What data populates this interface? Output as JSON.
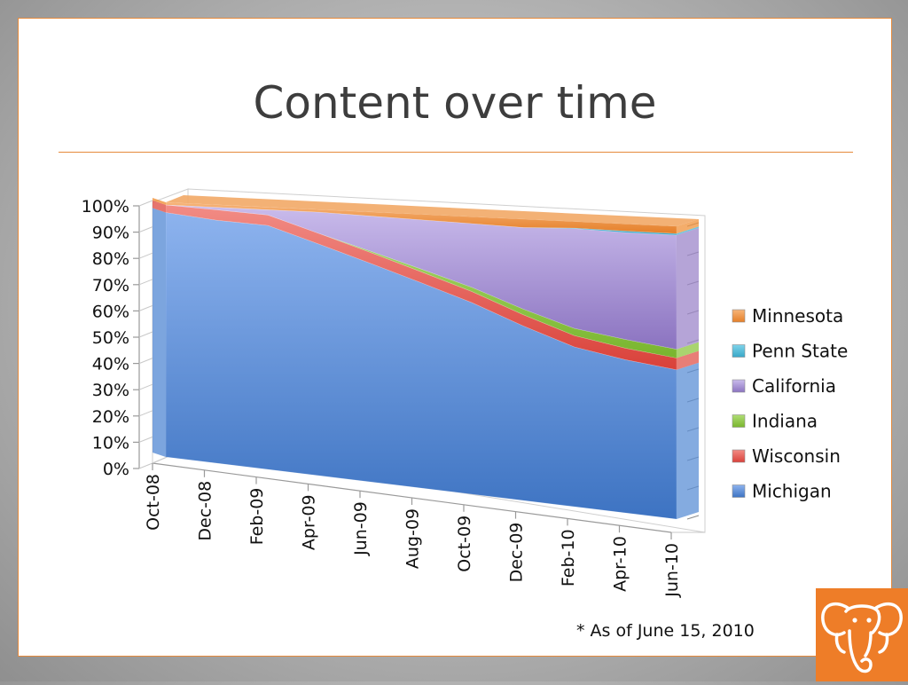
{
  "slide": {
    "title": "Content over time",
    "footnote": "* As of June 15, 2010"
  },
  "colors": {
    "Michigan": "#5b8fd6",
    "Wisconsin": "#e0534a",
    "Indiana": "#8cc63f",
    "California": "#9c86c9",
    "Penn State": "#45b3d1",
    "Minnesota": "#f0913a",
    "accent": "#ee7d28"
  },
  "chart_data": {
    "type": "area",
    "stacked": "percent",
    "title": "",
    "xlabel": "",
    "ylabel": "",
    "ylim": [
      0,
      100
    ],
    "y_ticks": [
      "0%",
      "10%",
      "20%",
      "30%",
      "40%",
      "50%",
      "60%",
      "70%",
      "80%",
      "90%",
      "100%"
    ],
    "categories": [
      "Oct-08",
      "Dec-08",
      "Feb-09",
      "Apr-09",
      "Jun-09",
      "Aug-09",
      "Oct-09",
      "Dec-09",
      "Feb-10",
      "Apr-10",
      "Jun-10"
    ],
    "series": [
      {
        "name": "Michigan",
        "values": [
          96,
          94,
          93,
          87,
          81,
          75,
          69,
          62,
          56,
          53,
          51
        ]
      },
      {
        "name": "Wisconsin",
        "values": [
          3,
          4,
          4,
          4,
          4,
          4,
          4,
          4,
          4,
          4,
          4
        ]
      },
      {
        "name": "Indiana",
        "values": [
          0,
          0,
          0,
          0,
          0.5,
          1,
          1.5,
          2,
          2.5,
          3,
          3
        ]
      },
      {
        "name": "California",
        "values": [
          0,
          1,
          2,
          8,
          13,
          18,
          23,
          29,
          35,
          37,
          39
        ]
      },
      {
        "name": "Penn State",
        "values": [
          0,
          0,
          0,
          0,
          0,
          0,
          0,
          0,
          0.2,
          0.5,
          0.5
        ]
      },
      {
        "name": "Minnesota",
        "values": [
          1,
          1,
          1,
          1,
          1.5,
          2,
          2.5,
          3,
          2.3,
          2.5,
          2.5
        ]
      }
    ],
    "legend": {
      "placement": "right",
      "entries": [
        "Minnesota",
        "Penn State",
        "California",
        "Indiana",
        "Wisconsin",
        "Michigan"
      ]
    },
    "grid": false
  }
}
